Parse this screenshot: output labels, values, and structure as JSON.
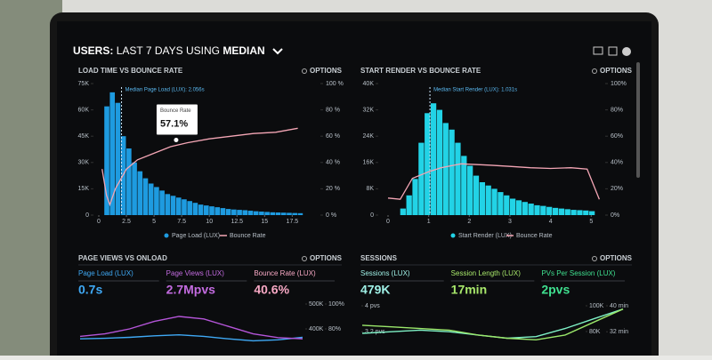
{
  "header": {
    "title_parts": [
      "USERS:",
      "LAST 7 DAYS",
      "USING",
      "MEDIAN"
    ]
  },
  "chart_data": [
    {
      "type": "histogram",
      "title": "LOAD TIME VS BOUNCE RATE",
      "options_label": "OPTIONS",
      "annotation": "Median Page Load (LUX): 2.056s",
      "median": 2.056,
      "bins": [
        0.5,
        1,
        1.5,
        2,
        2.5,
        3,
        3.5,
        4,
        4.5,
        5,
        5.5,
        6,
        6.5,
        7,
        7.5,
        8,
        8.5,
        9,
        9.5,
        10,
        10.5,
        11,
        11.5,
        12,
        12.5,
        13,
        13.5,
        14,
        14.5,
        15,
        15.5,
        16,
        16.5,
        17,
        17.5,
        18,
        18.5
      ],
      "series": [
        {
          "name": "Page Load (LUX)",
          "color": "#1e9be0",
          "values": [
            62000,
            70000,
            64000,
            45000,
            38000,
            30000,
            25000,
            21000,
            18000,
            16000,
            14000,
            12000,
            11000,
            10000,
            9000,
            8000,
            7000,
            6000,
            5500,
            5000,
            4500,
            4000,
            3500,
            3200,
            3000,
            2800,
            2500,
            2200,
            2000,
            1800,
            1600,
            1500,
            1400,
            1300,
            1200,
            1100
          ]
        },
        {
          "name": "Bounce Rate",
          "color": "#f4a6b5",
          "axis": "y2",
          "x": [
            0.3,
            0.7,
            1,
            1.5,
            2.5,
            3.5,
            5,
            6.5,
            8,
            10,
            12,
            14,
            16,
            18
          ],
          "values": [
            35,
            15,
            8,
            20,
            35,
            42,
            47,
            52,
            55,
            58,
            60,
            62,
            63,
            66
          ]
        }
      ],
      "tooltip": {
        "title": "Bounce Rate",
        "x": 7,
        "value": 57.1,
        "value_label": "57.1%"
      },
      "xlim": [
        0,
        19
      ],
      "xticks": [
        0,
        2.5,
        5,
        7.5,
        10,
        12.5,
        15,
        17.5
      ],
      "ylim": [
        0,
        75000
      ],
      "yticks": [
        {
          "value": 0,
          "label": "0"
        },
        {
          "value": 15000,
          "label": "15K"
        },
        {
          "value": 30000,
          "label": "30K"
        },
        {
          "value": 45000,
          "label": "45K"
        },
        {
          "value": 60000,
          "label": "60K"
        },
        {
          "value": 75000,
          "label": "75K"
        }
      ],
      "y2lim": [
        0,
        100
      ],
      "y2ticks": [
        {
          "value": 0,
          "label": "0 %"
        },
        {
          "value": 20,
          "label": "20 %"
        },
        {
          "value": 40,
          "label": "40 %"
        },
        {
          "value": 60,
          "label": "60 %"
        },
        {
          "value": 80,
          "label": "80 %"
        },
        {
          "value": 100,
          "label": "100 %"
        }
      ]
    },
    {
      "type": "histogram",
      "title": "START RENDER VS BOUNCE RATE",
      "options_label": "OPTIONS",
      "annotation": "Median Start Render (LUX): 1.031s",
      "median": 1.031,
      "bins": [
        0.3,
        0.45,
        0.6,
        0.75,
        0.9,
        1.05,
        1.2,
        1.35,
        1.5,
        1.65,
        1.8,
        1.95,
        2.1,
        2.25,
        2.4,
        2.55,
        2.7,
        2.85,
        3,
        3.15,
        3.3,
        3.45,
        3.6,
        3.75,
        3.9,
        4.05,
        4.2,
        4.35,
        4.5,
        4.65,
        4.8,
        4.95,
        5.1
      ],
      "series": [
        {
          "name": "Start Render (LUX)",
          "color": "#22d3e6",
          "values": [
            2000,
            6000,
            11000,
            22000,
            31000,
            34000,
            32000,
            28000,
            26000,
            22000,
            18000,
            15000,
            12000,
            10000,
            9000,
            8000,
            7000,
            6000,
            5000,
            4500,
            4000,
            3500,
            3000,
            2800,
            2500,
            2200,
            2000,
            1800,
            1600,
            1500,
            1400,
            1200
          ]
        },
        {
          "name": "Bounce Rate",
          "color": "#f4a6b5",
          "axis": "y2",
          "x": [
            0,
            0.3,
            0.6,
            1,
            1.3,
            1.8,
            2.5,
            3,
            3.5,
            4,
            4.5,
            4.9,
            5.2
          ],
          "values": [
            13,
            12,
            28,
            33,
            36,
            39,
            38,
            37,
            36,
            35.5,
            36,
            35,
            12
          ]
        }
      ],
      "xlim": [
        0,
        5.3
      ],
      "xticks": [
        0,
        1,
        2,
        3,
        4,
        5
      ],
      "ylim": [
        0,
        40000
      ],
      "yticks": [
        {
          "value": 0,
          "label": "0"
        },
        {
          "value": 8000,
          "label": "8K"
        },
        {
          "value": 16000,
          "label": "16K"
        },
        {
          "value": 24000,
          "label": "24K"
        },
        {
          "value": 32000,
          "label": "32K"
        },
        {
          "value": 40000,
          "label": "40K"
        }
      ],
      "y2lim": [
        0,
        100
      ],
      "y2ticks": [
        {
          "value": 0,
          "label": "0%"
        },
        {
          "value": 20,
          "label": "20%"
        },
        {
          "value": 40,
          "label": "40%"
        },
        {
          "value": 60,
          "label": "60%"
        },
        {
          "value": 80,
          "label": "80%"
        },
        {
          "value": 100,
          "label": "100%"
        }
      ]
    },
    {
      "type": "line",
      "title": "PAGE VIEWS VS ONLOAD",
      "options_label": "OPTIONS",
      "kpis": [
        {
          "label": "Page Load (LUX)",
          "value": "0.7s",
          "color": "#3fa9f5"
        },
        {
          "label": "Page Views (LUX)",
          "value": "2.7Mpvs",
          "color": "#c36be0"
        },
        {
          "label": "Bounce Rate (LUX)",
          "value": "40.6%",
          "color": "#f7a8c4"
        }
      ],
      "categories": [
        null,
        null,
        null,
        null,
        null,
        null,
        null,
        null,
        null,
        null
      ],
      "series": [
        {
          "color": "#3fa9f5",
          "values": [
            360000,
            362000,
            366000,
            372000,
            376000,
            370000,
            360000,
            352000,
            356000,
            366000
          ]
        },
        {
          "color": "#b455d8",
          "axis": "y2",
          "values": [
            74,
            76,
            80,
            86,
            90,
            88,
            82,
            76,
            73,
            72
          ]
        }
      ],
      "ylim": [
        350000,
        500000
      ],
      "yticks": [
        {
          "value": 500000,
          "label": "500K"
        },
        {
          "value": 400000,
          "label": "400K"
        }
      ],
      "y2lim": [
        70,
        100
      ],
      "y2ticks": [
        {
          "value": 100,
          "label": "100%"
        },
        {
          "value": 80,
          "label": "80%"
        }
      ]
    },
    {
      "type": "line",
      "title": "SESSIONS",
      "options_label": "OPTIONS",
      "kpis": [
        {
          "label": "Sessions (LUX)",
          "value": "479K",
          "color": "#9ff0e6"
        },
        {
          "label": "Session Length (LUX)",
          "value": "17min",
          "color": "#a8e86b"
        },
        {
          "label": "PVs Per Session (LUX)",
          "value": "2pvs",
          "color": "#3fe08f"
        }
      ],
      "categories": [
        null,
        null,
        null,
        null,
        null,
        null,
        null,
        null,
        null,
        null
      ],
      "series": [
        {
          "color": "#7ef0c5",
          "values": [
            3.15,
            3.2,
            3.25,
            3.2,
            3.1,
            3.0,
            3.05,
            3.3,
            3.6,
            3.9
          ]
        },
        {
          "color": "#9be86b",
          "axis": "y2",
          "values": [
            34,
            33.5,
            33,
            32.5,
            31,
            30,
            29.5,
            31,
            35,
            39
          ]
        }
      ],
      "ylim": [
        2.85,
        4
      ],
      "yticks": [
        {
          "value": 4,
          "label": "4 pvs"
        },
        {
          "value": 3.2,
          "label": "3.2 pvs"
        }
      ],
      "y2lim": [
        28.5,
        40
      ],
      "y2ticks": [
        {
          "value": 40,
          "label": "40 min"
        },
        {
          "value": 32,
          "label": "32 min"
        }
      ],
      "y3lim": [
        71000,
        100000
      ],
      "y3ticks": [
        {
          "value": 100000,
          "label": "100K"
        },
        {
          "value": 80000,
          "label": "80K"
        }
      ]
    }
  ]
}
